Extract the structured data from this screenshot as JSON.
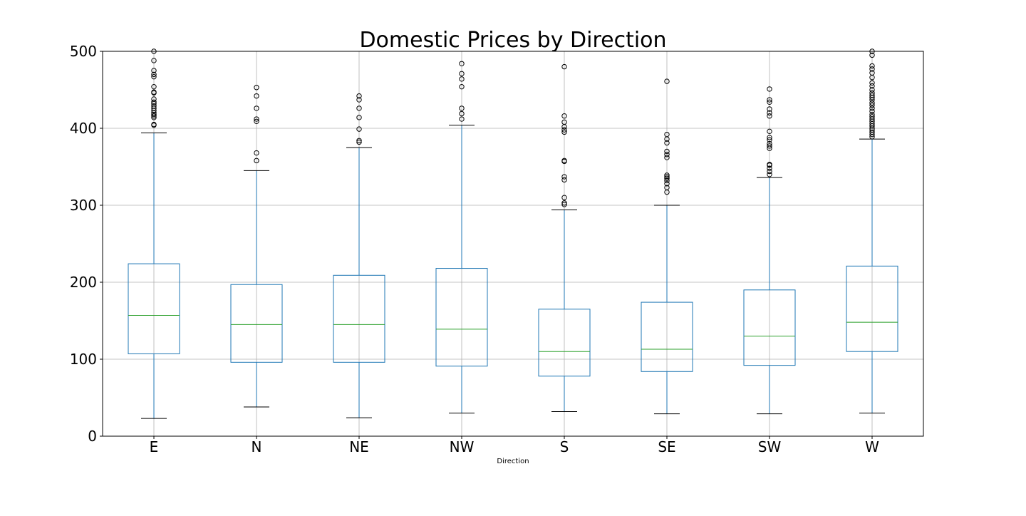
{
  "chart_data": {
    "type": "boxplot",
    "title": "Domestic Prices by Direction",
    "xlabel": "Direction",
    "ylabel": "",
    "ylim": [
      0,
      500
    ],
    "yticks": [
      0,
      100,
      200,
      300,
      400,
      500
    ],
    "grid": true,
    "colors": {
      "box": "#1f77b4",
      "median": "#2ca02c",
      "whisker": "#1f77b4",
      "cap": "#000000",
      "flier": "#000000"
    },
    "categories": [
      "E",
      "N",
      "NE",
      "NW",
      "S",
      "SE",
      "SW",
      "W"
    ],
    "boxes": [
      {
        "name": "E",
        "whislo": 23,
        "q1": 107,
        "med": 157,
        "q3": 224,
        "whishi": 394,
        "fliers": [
          404,
          405,
          414,
          416,
          418,
          420,
          423,
          426,
          429,
          432,
          434,
          438,
          446,
          447,
          454,
          467,
          470,
          475,
          488,
          500
        ]
      },
      {
        "name": "N",
        "whislo": 38,
        "q1": 96,
        "med": 145,
        "q3": 197,
        "whishi": 345,
        "fliers": [
          358,
          368,
          409,
          412,
          426,
          442,
          453
        ]
      },
      {
        "name": "NE",
        "whislo": 24,
        "q1": 96,
        "med": 145,
        "q3": 209,
        "whishi": 375,
        "fliers": [
          382,
          384,
          399,
          414,
          426,
          437,
          442
        ]
      },
      {
        "name": "NW",
        "whislo": 30,
        "q1": 91,
        "med": 139,
        "q3": 218,
        "whishi": 404,
        "fliers": [
          412,
          419,
          426,
          454,
          464,
          471,
          484
        ]
      },
      {
        "name": "S",
        "whislo": 32,
        "q1": 78,
        "med": 110,
        "q3": 165,
        "whishi": 294,
        "fliers": [
          301,
          303,
          310,
          333,
          337,
          357,
          358,
          395,
          398,
          402,
          408,
          416,
          480
        ]
      },
      {
        "name": "SE",
        "whislo": 29,
        "q1": 84,
        "med": 113,
        "q3": 174,
        "whishi": 300,
        "fliers": [
          317,
          323,
          328,
          332,
          335,
          337,
          339,
          362,
          366,
          370,
          381,
          386,
          392,
          461
        ]
      },
      {
        "name": "SW",
        "whislo": 29,
        "q1": 92,
        "med": 130,
        "q3": 190,
        "whishi": 336,
        "fliers": [
          340,
          344,
          348,
          352,
          353,
          374,
          377,
          380,
          385,
          388,
          396,
          416,
          420,
          425,
          434,
          437,
          451
        ]
      },
      {
        "name": "W",
        "whislo": 30,
        "q1": 110,
        "med": 148,
        "q3": 221,
        "whishi": 386,
        "fliers": [
          389,
          392,
          395,
          398,
          400,
          403,
          406,
          409,
          412,
          415,
          418,
          422,
          426,
          430,
          433,
          437,
          440,
          443,
          446,
          450,
          455,
          459,
          466,
          472,
          477,
          481,
          495,
          500
        ]
      }
    ]
  }
}
